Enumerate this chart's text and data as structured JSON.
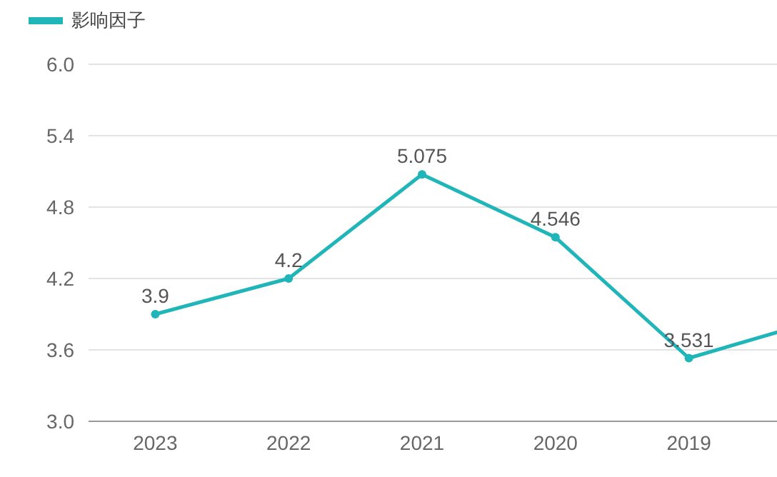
{
  "chart_data": {
    "type": "line",
    "categories": [
      "2023",
      "2022",
      "2021",
      "2020",
      "2019",
      null
    ],
    "series": [
      {
        "name": "影响因子",
        "color": "#1fb5b9",
        "values": [
          3.9,
          4.2,
          5.075,
          4.546,
          3.531,
          3.86
        ],
        "value_labels": [
          "3.9",
          "4.2",
          "5.075",
          "4.546",
          "3.531",
          null
        ]
      }
    ],
    "ylim": [
      3,
      6
    ],
    "yticks": [
      {
        "value": 3,
        "label": "3.0"
      },
      {
        "value": 3.6,
        "label": "3.6"
      },
      {
        "value": 4.2,
        "label": "4.2"
      },
      {
        "value": 4.8,
        "label": "4.8"
      },
      {
        "value": 5.4,
        "label": "5.4"
      },
      {
        "value": 6,
        "label": "6.0"
      }
    ],
    "grid": "y",
    "legend": "top left",
    "marker": "circle"
  }
}
